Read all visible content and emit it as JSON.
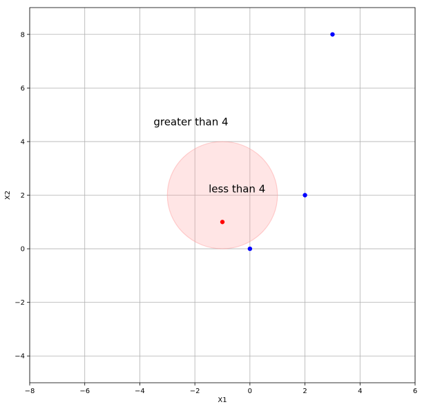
{
  "chart_data": {
    "type": "scatter",
    "title": "",
    "xlabel": "X1",
    "ylabel": "X2",
    "xlim": [
      -8,
      6
    ],
    "ylim": [
      -5,
      9
    ],
    "xticks": [
      -8,
      -6,
      -4,
      -2,
      0,
      2,
      4,
      6
    ],
    "yticks": [
      -4,
      -2,
      0,
      2,
      4,
      6,
      8
    ],
    "grid": true,
    "points": [
      {
        "x": -1,
        "y": 1,
        "color": "#ff0000"
      },
      {
        "x": 0,
        "y": 0,
        "color": "#0000ff"
      },
      {
        "x": 2,
        "y": 2,
        "color": "#0000ff"
      },
      {
        "x": 3,
        "y": 8,
        "color": "#0000ff"
      }
    ],
    "circle": {
      "center_x": -1,
      "center_y": 2,
      "radius": 2,
      "fill": "#ff9999",
      "alpha": 0.25
    },
    "annotations": [
      {
        "text": "greater than 4",
        "x": -3.5,
        "y": 4.6
      },
      {
        "text": "less than 4",
        "x": -1.5,
        "y": 2.1
      }
    ]
  }
}
